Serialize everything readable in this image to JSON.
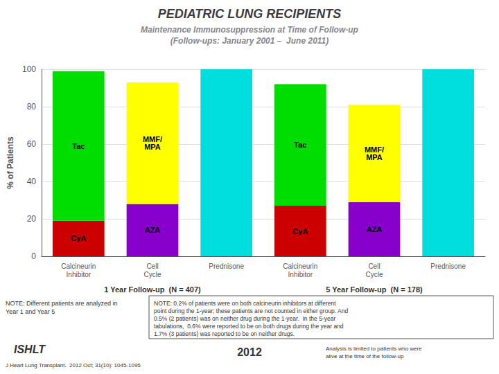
{
  "chart_data": {
    "type": "bar",
    "title": "PEDIATRIC LUNG RECIPIENTS",
    "subtitle": "Maintenance Immunosuppression at Time of Follow-up\n(Follow-ups: January 2001 –  June 2011)",
    "y_label": "% of Patients",
    "categories": [
      "Calcineurin\nInhibitor",
      "Cell\nCycle",
      "Prednisone",
      "Calcineurin\nInhibitor",
      "Cell\nCycle",
      "Prednisone"
    ],
    "group_labels": [
      "1 Year Follow-up  (N = 407)",
      "5 Year Follow-up  (N = 178)"
    ],
    "series": [
      {
        "name": "CyA",
        "color": "#cc0000",
        "values": [
          19,
          null,
          null,
          27,
          null,
          null
        ]
      },
      {
        "name": "Tac",
        "color": "#00dd00",
        "values": [
          80,
          null,
          null,
          65,
          null,
          null
        ]
      },
      {
        "name": "AZA",
        "color": "#8800cc",
        "values": [
          null,
          28,
          null,
          null,
          29,
          null
        ]
      },
      {
        "name": "MMF/\nMPA",
        "color": "#ffff00",
        "values": [
          null,
          65,
          null,
          null,
          52,
          null
        ]
      },
      {
        "color": "#00dddd",
        "values": [
          null,
          null,
          100,
          null,
          null,
          100
        ]
      }
    ],
    "stacked": true,
    "ylim": [
      0,
      100
    ],
    "yticks": [
      0,
      20,
      40,
      60,
      80,
      100
    ],
    "grid": true,
    "annotations": [
      "NOTE: Different patients are analyzed in\nYear 1 and Year 5",
      "NOTE: 0.2% of patients were on both calcineurin inhibitors at different\npoint during the 1-year; these patients are not counted in either group. And\n0.5% (2 patients) was on neither drug during the 1-year.  In the 5-year\ntabulations,  0.6% were reported to be on both drugs during the year and\n1.7% (3 patients) was reported to be on neither drugs.",
      "ISHLT",
      "J Heart Lung Transplant.  2012 Oct; 31(10): 1045-1095",
      "2012",
      "Analysis is limited to patients who were\nalive at the time of the follow-up"
    ]
  }
}
